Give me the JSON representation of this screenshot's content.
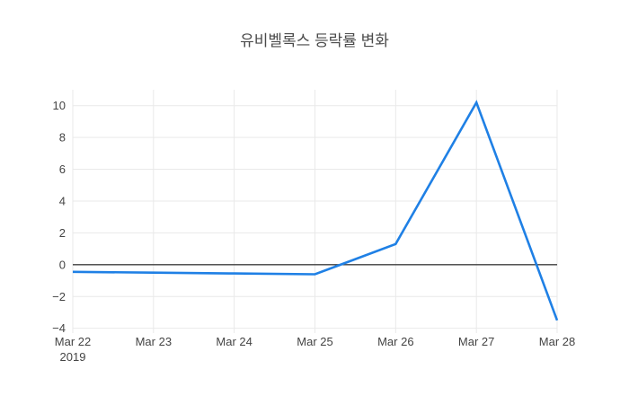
{
  "chart_data": {
    "type": "line",
    "title": "유비벨록스 등락률 변화",
    "categories": [
      "Mar 22",
      "Mar 23",
      "Mar 24",
      "Mar 25",
      "Mar 26",
      "Mar 27",
      "Mar 28"
    ],
    "first_tick_sub_label": "2019",
    "series": [
      {
        "values": [
          -0.45,
          -0.5,
          -0.55,
          -0.6,
          1.3,
          10.2,
          -3.5
        ],
        "color": "#1f80e5",
        "line_width": 2.6
      }
    ],
    "yticks": [
      -4,
      -2,
      0,
      2,
      4,
      6,
      8,
      10
    ],
    "ytick_labels": [
      "−4",
      "−2",
      "0",
      "2",
      "4",
      "6",
      "8",
      "10"
    ],
    "ylim": [
      -4.3,
      11.0
    ],
    "xlabel": "",
    "ylabel": "",
    "grid": true,
    "zeroline_y": 0,
    "legend": "none",
    "colors": {
      "grid": "#e9e9e9",
      "zeroline": "#3f3f3f",
      "tick_text": "#444444",
      "title_text": "#4a4a4a",
      "background": "#ffffff"
    }
  }
}
